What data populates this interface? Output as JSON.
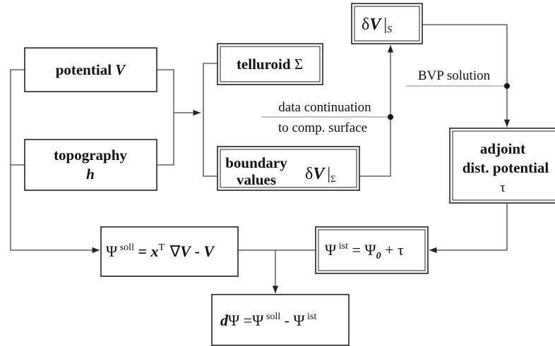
{
  "nodes": {
    "potential": [
      "potential ",
      "V"
    ],
    "topography": [
      "topography",
      "h"
    ],
    "telluroid": [
      "telluroid ",
      "Σ"
    ],
    "boundary": [
      "boundary",
      "values",
      "δ",
      "V",
      "|",
      "Σ"
    ],
    "dVs": [
      "δ",
      "V",
      "|",
      "S"
    ],
    "adjoint": [
      "adjoint",
      "dist. potential",
      "τ"
    ],
    "psi_soll": [
      "Ψ",
      " soll",
      " = ",
      "x",
      "T",
      " ∇",
      "V",
      " - ",
      "V"
    ],
    "psi_ist": [
      "Ψ",
      " ist",
      " = Ψ",
      "0",
      " + τ"
    ],
    "dpsi": [
      "d",
      "Ψ =Ψ",
      " soll",
      " - Ψ",
      " ist"
    ]
  },
  "labels": {
    "data_continuation": [
      "data continuation",
      "to comp. surface"
    ],
    "bvp": "BVP solution"
  }
}
